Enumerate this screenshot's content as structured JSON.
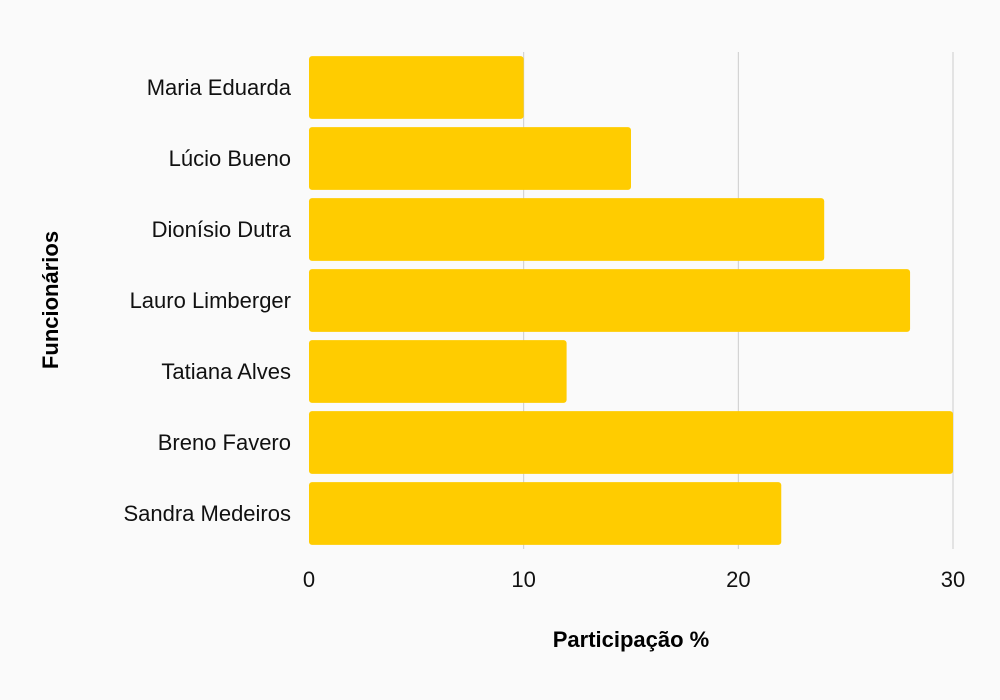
{
  "chart_data": {
    "type": "bar",
    "orientation": "horizontal",
    "title": "",
    "xlabel": "Participação %",
    "ylabel": "Funcionários",
    "categories": [
      "Maria Eduarda",
      "Lúcio Bueno",
      "Dionísio Dutra",
      "Lauro Limberger",
      "Tatiana Alves",
      "Breno Favero",
      "Sandra Medeiros"
    ],
    "values": [
      10,
      15,
      24,
      28,
      12,
      30,
      22
    ],
    "xlim": [
      0,
      30
    ],
    "xticks": [
      "0",
      "10",
      "20",
      "30"
    ],
    "grid": "vertical",
    "legend": "none",
    "colors": {
      "bar": "#FFCC00",
      "grid": "#cccccc",
      "background": "#fafafa",
      "text": "#111111"
    }
  }
}
